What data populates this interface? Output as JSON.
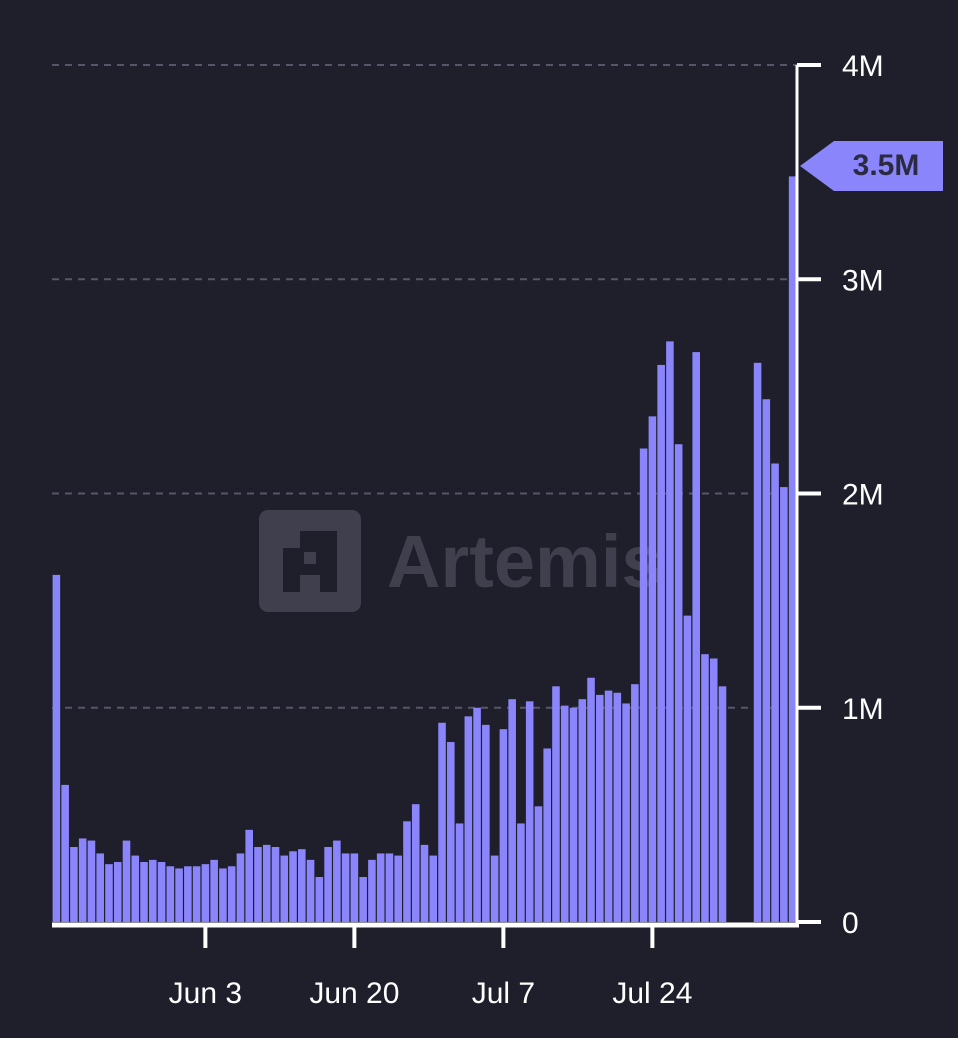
{
  "watermark": {
    "text": "Artemis",
    "logo_icon": "artemis-logo-icon"
  },
  "colors": {
    "background": "#1e1f2b",
    "bar": "#8b85fb",
    "axis": "#ffffff",
    "grid": "#55566a",
    "callout": "#8b85fb"
  },
  "chart_data": {
    "type": "bar",
    "title": "",
    "xlabel": "",
    "ylabel": "",
    "ylim": [
      0,
      4000000
    ],
    "y_axis_position": "right",
    "grid": true,
    "y_ticks": [
      {
        "value": 0,
        "label": "0"
      },
      {
        "value": 1000000,
        "label": "1M"
      },
      {
        "value": 2000000,
        "label": "2M"
      },
      {
        "value": 3000000,
        "label": "3M"
      },
      {
        "value": 4000000,
        "label": "4M"
      }
    ],
    "x_ticks": [
      {
        "index": 17,
        "label": "Jun 3"
      },
      {
        "index": 34,
        "label": "Jun 20"
      },
      {
        "index": 51,
        "label": "Jul 7"
      },
      {
        "index": 68,
        "label": "Jul 24"
      }
    ],
    "last_value_label": "3.5M",
    "values": [
      1620000,
      640000,
      350000,
      390000,
      380000,
      320000,
      270000,
      280000,
      380000,
      310000,
      280000,
      290000,
      280000,
      260000,
      250000,
      260000,
      260000,
      270000,
      290000,
      250000,
      260000,
      320000,
      430000,
      350000,
      360000,
      350000,
      310000,
      330000,
      340000,
      290000,
      210000,
      350000,
      380000,
      320000,
      320000,
      210000,
      290000,
      320000,
      320000,
      310000,
      470000,
      550000,
      360000,
      310000,
      930000,
      840000,
      460000,
      960000,
      1000000,
      920000,
      310000,
      900000,
      1040000,
      460000,
      1030000,
      540000,
      810000,
      1100000,
      1010000,
      1000000,
      1040000,
      1140000,
      1060000,
      1080000,
      1070000,
      1020000,
      1110000,
      2210000,
      2360000,
      2600000,
      2710000,
      2230000,
      1430000,
      2660000,
      1250000,
      1230000,
      1100000,
      0,
      0,
      0,
      2610000,
      2440000,
      2140000,
      2030000,
      3480000
    ]
  }
}
